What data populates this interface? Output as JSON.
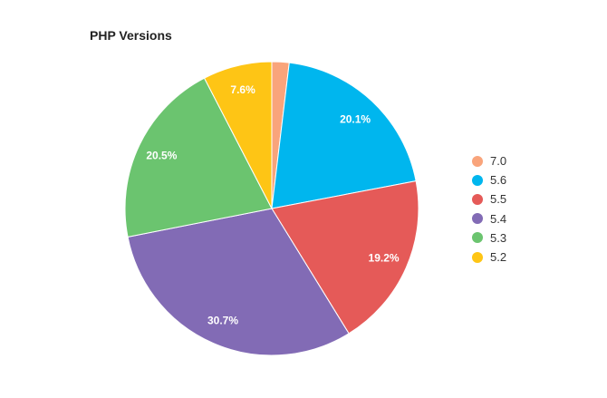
{
  "chart_data": {
    "type": "pie",
    "title": "PHP Versions",
    "legend_position": "right",
    "slices": [
      {
        "label": "7.0",
        "value": 1.9,
        "color": "#f9a47b",
        "data_label": ""
      },
      {
        "label": "5.6",
        "value": 20.1,
        "color": "#00b6ee",
        "data_label": "20.1%"
      },
      {
        "label": "5.5",
        "value": 19.2,
        "color": "#e55a58",
        "data_label": "19.2%"
      },
      {
        "label": "5.4",
        "value": 30.7,
        "color": "#826bb5",
        "data_label": "30.7%"
      },
      {
        "label": "5.3",
        "value": 20.5,
        "color": "#6bc46f",
        "data_label": "20.5%"
      },
      {
        "label": "5.2",
        "value": 7.6,
        "color": "#fec515",
        "data_label": "7.6%"
      }
    ]
  }
}
